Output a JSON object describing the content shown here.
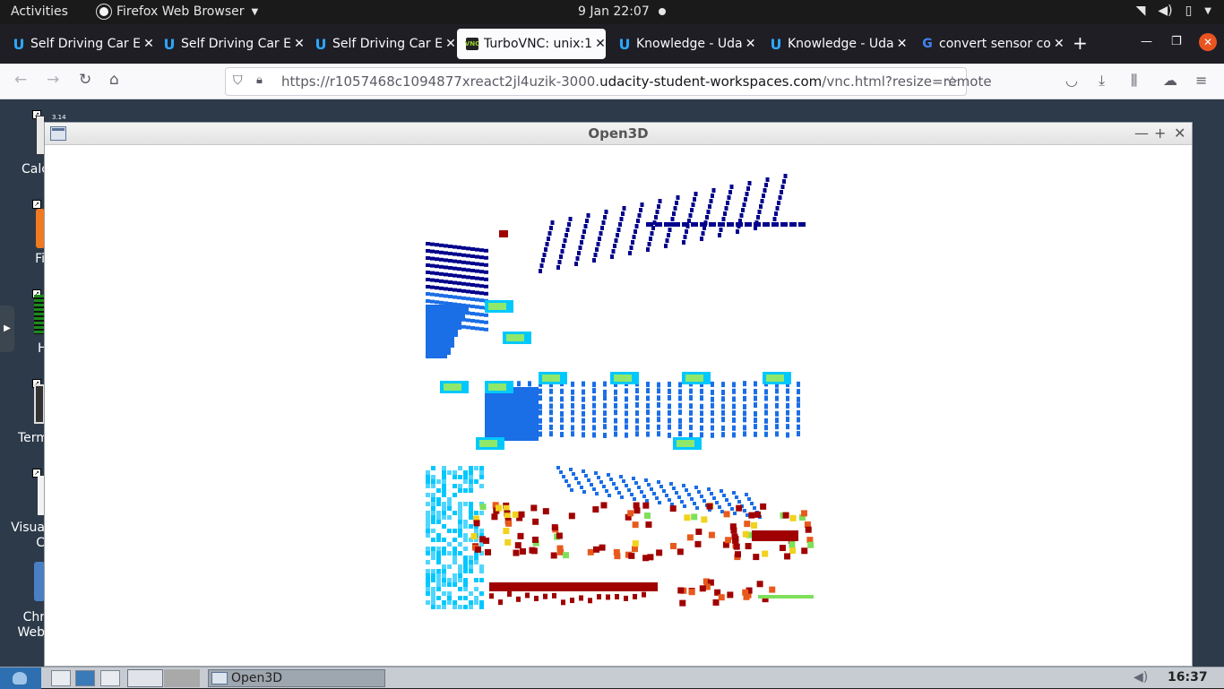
{
  "topbar": {
    "activities": "Activities",
    "app_name": "Firefox Web Browser",
    "clock": "9 Jan  22:07"
  },
  "tabs": [
    {
      "label": "Self Driving Car E",
      "icon": "udacity-icon",
      "active": false
    },
    {
      "label": "Self Driving Car E",
      "icon": "udacity-icon",
      "active": false
    },
    {
      "label": "Self Driving Car E",
      "icon": "udacity-icon",
      "active": false
    },
    {
      "label": "TurboVNC: unix:1",
      "icon": "vnc-icon",
      "active": true
    },
    {
      "label": "Knowledge - Uda",
      "icon": "udacity-icon",
      "active": false
    },
    {
      "label": "Knowledge - Uda",
      "icon": "udacity-icon",
      "active": false
    },
    {
      "label": "convert sensor co",
      "icon": "google-icon",
      "active": false
    }
  ],
  "urlbar": {
    "url_prefix": "https://r1057468c1094877xreact2jl4uzik-3000.",
    "url_domain": "udacity-student-workspaces.com",
    "url_suffix": "/vnc.html?resize=remote"
  },
  "desktop": {
    "icons": [
      {
        "label": "Calc",
        "icon": "calculator-icon"
      },
      {
        "label": "Fi",
        "icon": "firefox-icon"
      },
      {
        "label": "H",
        "icon": "htop-icon"
      },
      {
        "label": "Term",
        "icon": "terminal-icon"
      },
      {
        "label": "Visua\nC",
        "icon": "vscode-icon"
      },
      {
        "label": "Chr\nWeb",
        "icon": "chrome-icon"
      }
    ],
    "calc_badge": "3.14"
  },
  "open3d": {
    "title": "Open3D"
  },
  "panel": {
    "task_label": "Open3D",
    "clock": "16:37"
  },
  "colors": {
    "firefox_tabbar": "#1f1e25",
    "accent_close": "#e95420",
    "udacity_blue": "#2da7ff",
    "pointcloud_far": "#00008c",
    "pointcloud_mid": "#1a6ee6",
    "pointcloud_near": "#00c8ff",
    "pointcloud_high": "#a00000"
  }
}
